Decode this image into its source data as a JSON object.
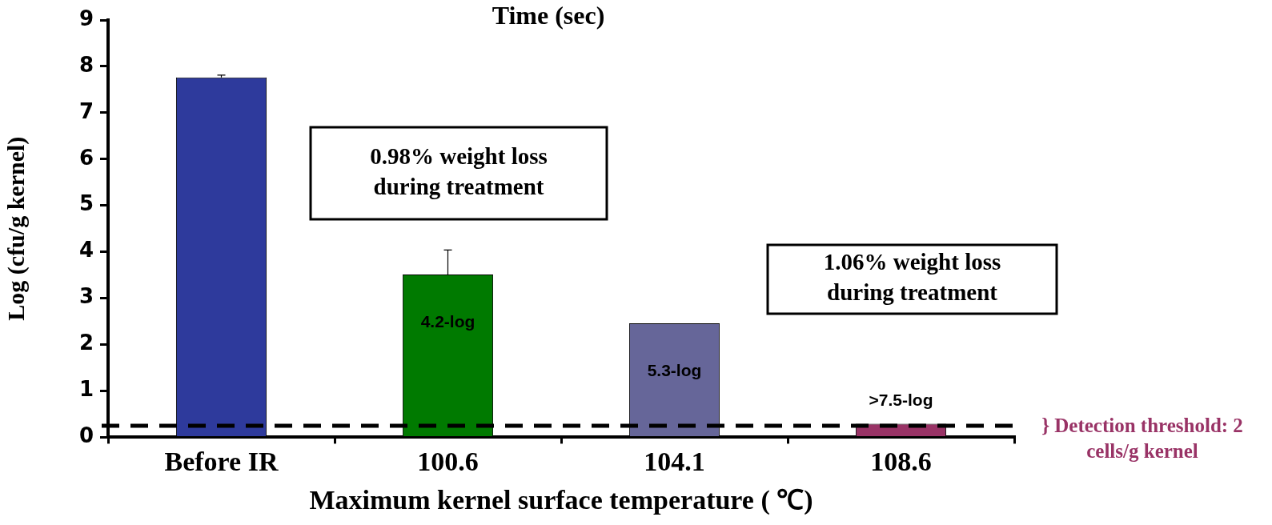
{
  "chart_data": {
    "type": "bar",
    "title": "Time (sec)",
    "xlabel": "Maximum kernel surface temperature ( ℃)",
    "ylabel": "Log (cfu/g kernel)",
    "categories": [
      "Before IR",
      "100.6",
      "104.1",
      "108.6"
    ],
    "values": [
      7.76,
      3.51,
      2.46,
      0.29
    ],
    "colors": [
      "#2e3a9c",
      "#007a00",
      "#666699",
      "#993366"
    ],
    "errors": [
      [
        7.76,
        7.81
      ],
      [
        3.51,
        4.04
      ],
      null,
      null
    ],
    "ylim": [
      0,
      9
    ],
    "yticks": [
      0,
      1,
      2,
      3,
      4,
      5,
      6,
      7,
      8,
      9
    ],
    "grid": false,
    "legend": false,
    "ref_lines": [
      {
        "axis": "y",
        "value": 0.25,
        "color": "#000000",
        "line_style": "dashed"
      }
    ],
    "annotations": [
      "0.98% weight loss during treatment",
      "1.06% weight loss during treatment",
      "} Detection threshold: 2 cells/g kernel",
      {
        "text": "4.2-log",
        "x": "100.6",
        "y": 3.51
      },
      {
        "text": "5.3-log",
        "x": "104.1",
        "y": 2.46
      },
      {
        "text": ">7.5-log",
        "x": "108.6",
        "y": 0.29
      }
    ]
  }
}
